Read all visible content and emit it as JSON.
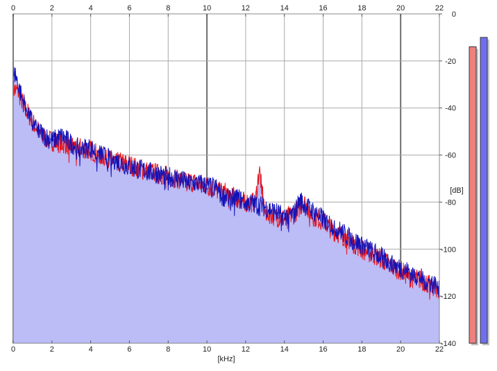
{
  "chart_data": {
    "type": "area",
    "xlabel": "[kHz]",
    "ylabel": "[dB]",
    "xlim": [
      0,
      22
    ],
    "ylim": [
      -140,
      0
    ],
    "x_ticks": [
      0,
      2,
      4,
      6,
      8,
      10,
      12,
      14,
      16,
      18,
      20,
      22
    ],
    "x_tick_labels": [
      "0",
      "2",
      "4",
      "6",
      "8",
      "10",
      "12",
      "14",
      "16",
      "18",
      "20",
      "22"
    ],
    "y_ticks": [
      0,
      -20,
      -40,
      -60,
      -80,
      -100,
      -120,
      -140
    ],
    "y_tick_labels": [
      "0",
      "-20",
      "-40",
      "-60",
      "-80",
      "-100",
      "-120",
      "-140"
    ],
    "grid": true,
    "series": [
      {
        "color": "#e8141c",
        "x": [
          0.0,
          0.25,
          0.5,
          0.75,
          1.0,
          1.5,
          2.0,
          2.5,
          3.0,
          3.5,
          4.0,
          4.5,
          5.0,
          5.5,
          6.0,
          6.5,
          7.0,
          7.5,
          8.0,
          8.5,
          9.0,
          9.5,
          10.0,
          10.5,
          11.0,
          11.5,
          12.0,
          12.5,
          12.7,
          13.0,
          13.5,
          14.0,
          14.5,
          15.0,
          15.5,
          16.0,
          16.5,
          17.0,
          17.5,
          18.0,
          18.5,
          19.0,
          19.5,
          20.0,
          20.5,
          21.0,
          21.5,
          22.0
        ],
        "y": [
          -32,
          -33,
          -38,
          -42,
          -46,
          -52,
          -54,
          -55,
          -56,
          -57,
          -58,
          -60,
          -62,
          -63,
          -64,
          -66,
          -67,
          -68,
          -69,
          -70,
          -71,
          -72,
          -73,
          -75,
          -76,
          -78,
          -80,
          -80,
          -66,
          -84,
          -86,
          -87,
          -85,
          -80,
          -86,
          -88,
          -92,
          -94,
          -97,
          -100,
          -102,
          -104,
          -107,
          -109,
          -112,
          -113,
          -115,
          -117
        ]
      },
      {
        "color": "#1212b8",
        "x": [
          0.0,
          0.1,
          0.25,
          0.5,
          0.75,
          1.0,
          1.5,
          2.0,
          2.5,
          3.0,
          3.5,
          4.0,
          4.5,
          5.0,
          5.5,
          6.0,
          6.5,
          7.0,
          7.5,
          8.0,
          8.5,
          9.0,
          9.5,
          10.0,
          10.5,
          10.8,
          11.0,
          11.5,
          12.0,
          12.5,
          13.0,
          13.5,
          14.0,
          14.5,
          14.8,
          15.0,
          15.5,
          16.0,
          16.5,
          17.0,
          17.5,
          18.0,
          18.5,
          19.0,
          19.5,
          20.0,
          20.5,
          21.0,
          21.5,
          22.0
        ],
        "y": [
          -28,
          -25,
          -30,
          -37,
          -41,
          -47,
          -51,
          -54,
          -52,
          -55,
          -57,
          -57,
          -60,
          -61,
          -63,
          -65,
          -66,
          -67,
          -68,
          -69,
          -70,
          -72,
          -72,
          -73,
          -74,
          -78,
          -77,
          -78,
          -80,
          -81,
          -82,
          -84,
          -86,
          -85,
          -79,
          -81,
          -84,
          -87,
          -90,
          -93,
          -96,
          -98,
          -101,
          -103,
          -106,
          -108,
          -110,
          -112,
          -114,
          -116
        ]
      }
    ],
    "level_meters": [
      {
        "color": "#f08080",
        "value": -14
      },
      {
        "color": "#7070ee",
        "value": -10
      }
    ]
  }
}
